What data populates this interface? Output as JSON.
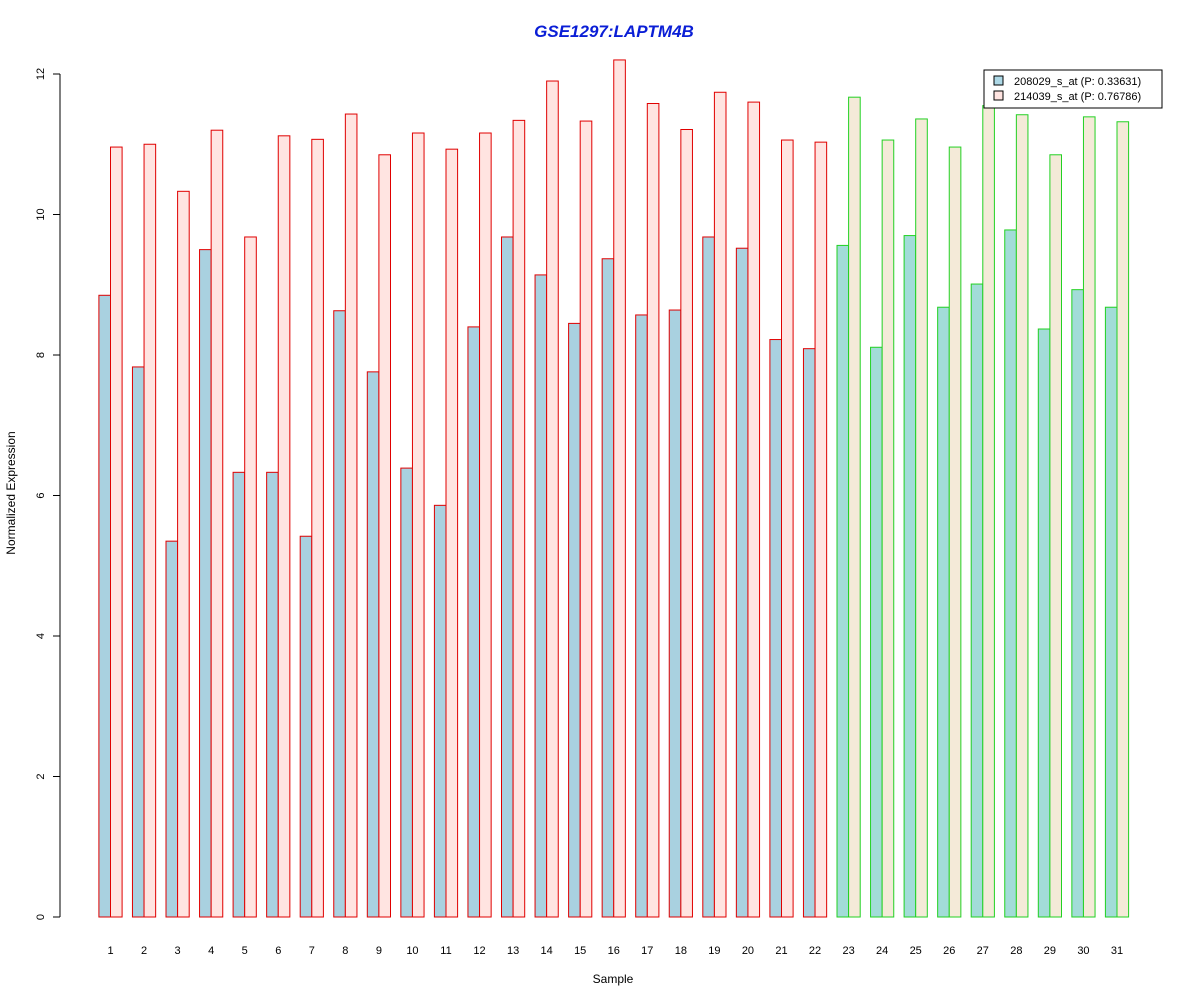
{
  "chart_data": {
    "type": "bar",
    "title": "GSE1297:LAPTM4B",
    "xlabel": "Sample",
    "ylabel": "Normalized Expression",
    "ylim": [
      0,
      12
    ],
    "yticks": [
      0,
      2,
      4,
      6,
      8,
      10,
      12
    ],
    "categories": [
      "1",
      "2",
      "3",
      "4",
      "5",
      "6",
      "7",
      "8",
      "9",
      "10",
      "11",
      "12",
      "13",
      "14",
      "15",
      "16",
      "17",
      "18",
      "19",
      "20",
      "21",
      "22",
      "23",
      "24",
      "25",
      "26",
      "27",
      "28",
      "29",
      "30",
      "31"
    ],
    "series": [
      {
        "name": "208029_s_at (P: 0.33631)",
        "values": [
          8.85,
          7.83,
          5.35,
          9.5,
          6.33,
          6.33,
          5.42,
          8.63,
          7.76,
          6.39,
          5.86,
          8.4,
          9.68,
          9.14,
          8.45,
          9.37,
          8.57,
          8.64,
          9.68,
          9.52,
          8.22,
          8.09,
          9.56,
          8.11,
          9.7,
          8.68,
          9.01,
          9.78,
          8.37,
          8.93,
          8.68
        ]
      },
      {
        "name": "214039_s_at (P: 0.76786)",
        "values": [
          10.96,
          11.0,
          10.33,
          11.2,
          9.68,
          11.12,
          11.07,
          11.43,
          10.85,
          11.16,
          10.93,
          11.16,
          11.34,
          11.9,
          11.33,
          12.2,
          11.58,
          11.21,
          11.74,
          11.6,
          11.06,
          11.03,
          11.67,
          11.06,
          11.36,
          10.96,
          11.55,
          11.42,
          10.85,
          11.39,
          11.32
        ]
      }
    ],
    "group_sizes": [
      22,
      9
    ],
    "legend_position": "top-right",
    "grid": false,
    "colors": {
      "title": "#0a1ed6",
      "series1_fill": "#a9d1e0",
      "series2_fill_group1": "#ffe4e1",
      "series2_fill_group2": "#f4ead8",
      "series1_fill_group2": "#a2dcd8",
      "group1_border": "#e00000",
      "group2_border": "#22d122",
      "legend_series1": "#add8e6",
      "legend_series2": "#ffe4e1"
    }
  }
}
